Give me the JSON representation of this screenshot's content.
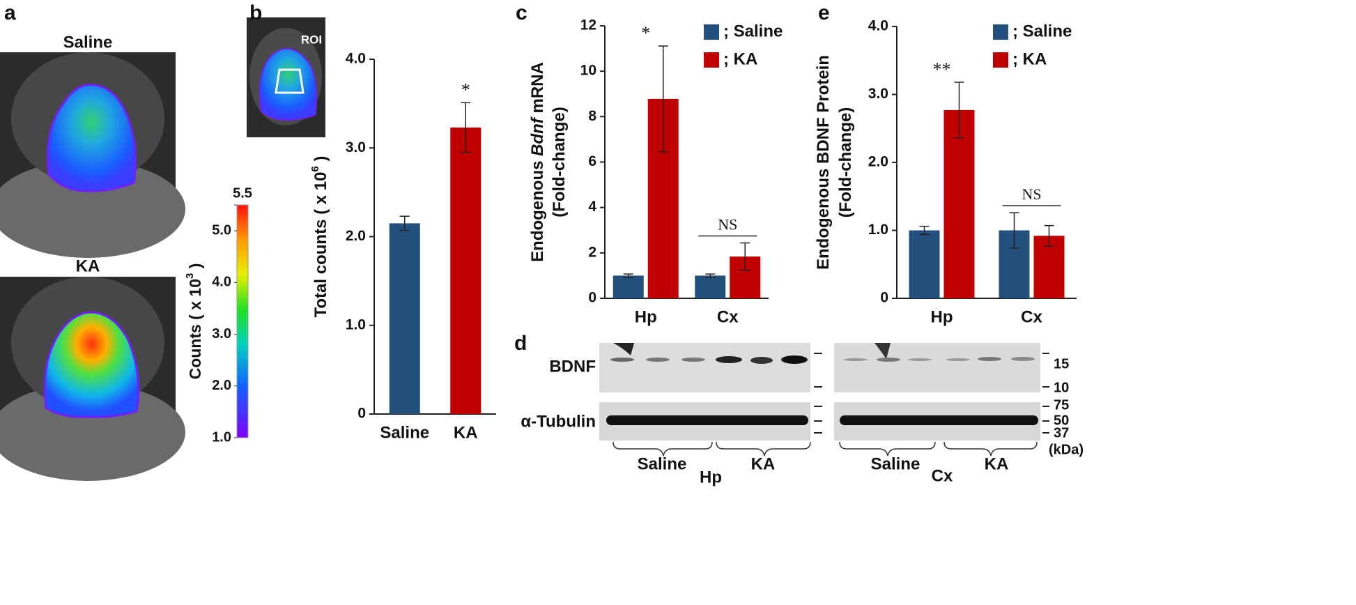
{
  "panels": [
    "a",
    "b",
    "c",
    "d",
    "e"
  ],
  "images": {
    "titles": [
      "Saline",
      "KA"
    ],
    "roi": "ROI"
  },
  "colorbar": {
    "label": [
      "Counts ( x 10",
      "3",
      " )"
    ],
    "ylim": [
      1,
      5.5
    ],
    "ticks": [
      {
        "value": 5.5,
        "label": "5.5"
      },
      {
        "value": 5,
        "label": "5.0"
      },
      {
        "value": 4,
        "label": "4.0"
      },
      {
        "value": 3,
        "label": "3.0"
      },
      {
        "value": 2,
        "label": "2.0"
      },
      {
        "value": 1,
        "label": "1.0"
      }
    ]
  },
  "chart_data": [
    {
      "type": "bar",
      "ylabel": [
        [
          "Total counts ( x 10",
          "6",
          " )"
        ]
      ],
      "categories": [
        "Saline",
        "KA"
      ],
      "values": [
        2.15,
        3.23
      ],
      "errors": [
        0.08,
        0.28
      ],
      "colors": [
        "#23507c",
        "#c00000"
      ],
      "ylim": [
        0,
        4
      ],
      "yticks": [
        0,
        {
          "value": 1,
          "label": "1.0"
        },
        {
          "value": 2,
          "label": "2.0"
        },
        {
          "value": 3,
          "label": "3.0"
        },
        {
          "value": 4,
          "label": "4.0"
        }
      ],
      "annotations": [
        "*"
      ]
    },
    {
      "type": "bar",
      "ylabel": [
        [
          "Endogenous ",
          "Bdnf",
          " mRNA"
        ],
        [
          "(Fold-change)"
        ]
      ],
      "categories": [
        "Hp",
        "Cx"
      ],
      "series": [
        {
          "name": "; Saline",
          "color": "#23507c",
          "values": [
            1.0,
            1.0
          ],
          "errors": [
            0.07,
            0.07
          ]
        },
        {
          "name": "; KA",
          "color": "#c00000",
          "values": [
            8.78,
            1.84
          ],
          "errors": [
            2.33,
            0.6
          ]
        }
      ],
      "ylim": [
        0,
        12
      ],
      "yticks": [
        0,
        2,
        4,
        6,
        8,
        10,
        12
      ],
      "annotations": [
        "*",
        "NS"
      ]
    },
    {
      "type": "bar",
      "ylabel": [
        [
          "Endogenous BDNF Protein"
        ],
        [
          "(Fold-change)"
        ]
      ],
      "categories": [
        "Hp",
        "Cx"
      ],
      "series": [
        {
          "name": "; Saline",
          "color": "#23507c",
          "values": [
            1.0,
            1.0
          ],
          "errors": [
            0.06,
            0.26
          ]
        },
        {
          "name": "; KA",
          "color": "#c00000",
          "values": [
            2.77,
            0.92
          ],
          "errors": [
            0.41,
            0.15
          ]
        }
      ],
      "ylim": [
        0,
        4
      ],
      "yticks": [
        0,
        {
          "value": 1,
          "label": "1.0"
        },
        {
          "value": 2,
          "label": "2.0"
        },
        {
          "value": 3,
          "label": "3.0"
        },
        {
          "value": 4,
          "label": "4.0"
        }
      ],
      "annotations": [
        "**",
        "NS"
      ]
    }
  ],
  "blot": {
    "rows": [
      "BDNF",
      "α-Tubulin"
    ],
    "markers": [
      "15",
      "10",
      "75",
      "50",
      "37"
    ],
    "unit": "(kDa)",
    "groups": [
      {
        "tissue": "Hp",
        "conditions": [
          "Saline",
          "KA"
        ]
      },
      {
        "tissue": "Cx",
        "conditions": [
          "Saline",
          "KA"
        ]
      }
    ]
  }
}
